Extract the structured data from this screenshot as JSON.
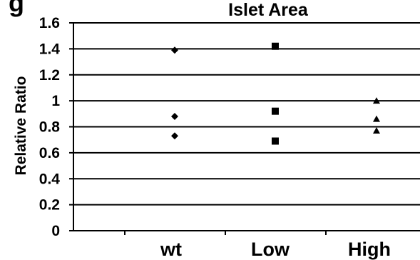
{
  "chart_data": {
    "type": "scatter",
    "title": "Islet Area",
    "title_fragment": "g",
    "xlabel": "",
    "ylabel": "Relative Ratio",
    "categories": [
      "wt",
      "Low",
      "High"
    ],
    "ylim": [
      0,
      1.6
    ],
    "yticks": [
      "0",
      "0.2",
      "0.4",
      "0.6",
      "0.8",
      "1",
      "1.2",
      "1.4",
      "1.6"
    ],
    "grid": true,
    "series": [
      {
        "category": "wt",
        "marker": "diamond",
        "values": [
          1.39,
          0.88,
          0.73
        ]
      },
      {
        "category": "Low",
        "marker": "square",
        "values": [
          1.42,
          0.92,
          0.69
        ]
      },
      {
        "category": "High",
        "marker": "triangle",
        "values": [
          1.0,
          0.86,
          0.77
        ]
      }
    ],
    "colors": {
      "marker": "#000000",
      "grid": "#000000",
      "background": "#ffffff"
    }
  }
}
